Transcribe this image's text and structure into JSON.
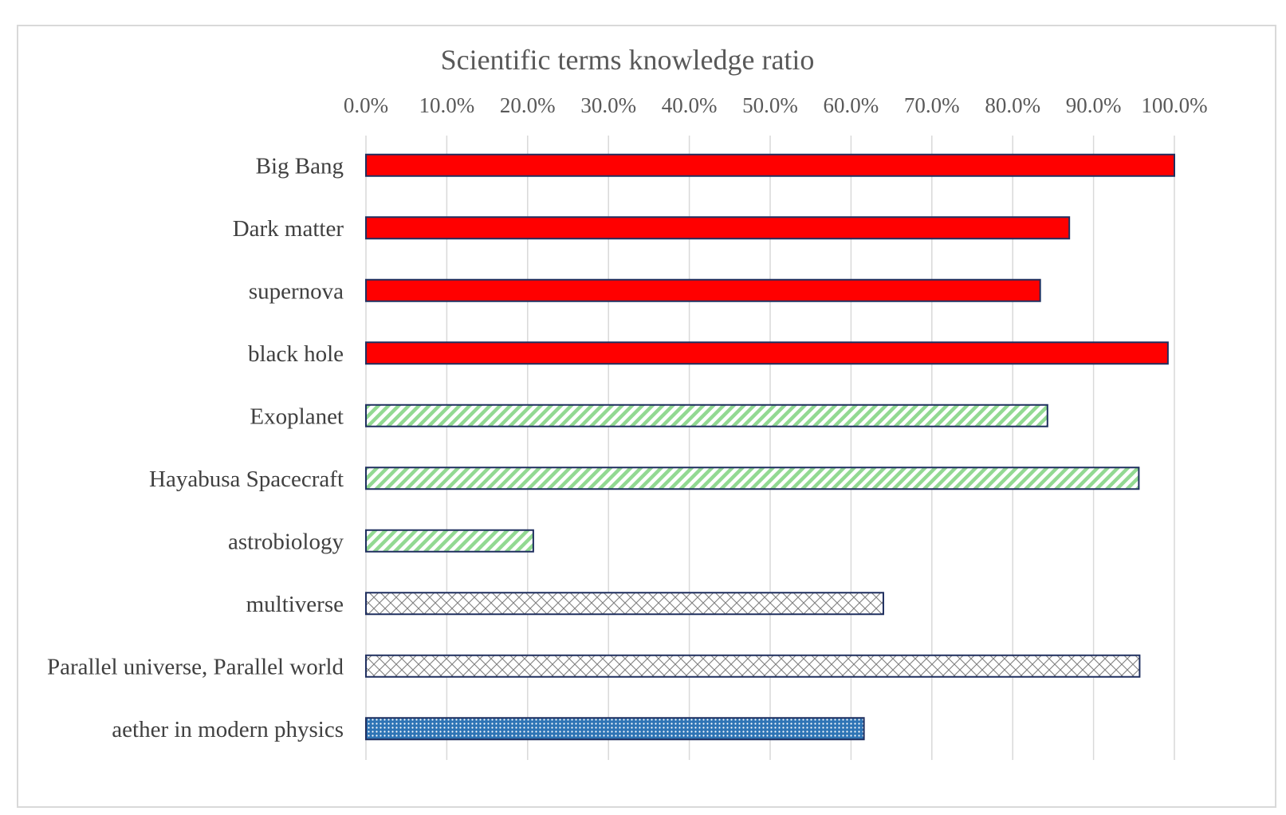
{
  "chart_data": {
    "type": "bar",
    "orientation": "horizontal",
    "title": "Scientific terms knowledge ratio",
    "xlim": [
      0,
      100
    ],
    "x_axis_position": "top",
    "grid": true,
    "legend": "none",
    "x_ticks": [
      "0.0%",
      "10.0%",
      "20.0%",
      "30.0%",
      "40.0%",
      "50.0%",
      "60.0%",
      "70.0%",
      "80.0%",
      "90.0%",
      "100.0%"
    ],
    "bars": [
      {
        "category": "Big Bang",
        "value": 100.0,
        "pattern": "solid-red"
      },
      {
        "category": "Dark matter",
        "value": 87.0,
        "pattern": "solid-red"
      },
      {
        "category": "supernova",
        "value": 83.4,
        "pattern": "solid-red"
      },
      {
        "category": "black hole",
        "value": 99.2,
        "pattern": "solid-red"
      },
      {
        "category": "Exoplanet",
        "value": 84.3,
        "pattern": "green-diagonal"
      },
      {
        "category": "Hayabusa Spacecraft",
        "value": 95.6,
        "pattern": "green-diagonal"
      },
      {
        "category": "astrobiology",
        "value": 20.7,
        "pattern": "green-diagonal"
      },
      {
        "category": "multiverse",
        "value": 64.0,
        "pattern": "crosshatch"
      },
      {
        "category": "Parallel universe, Parallel world",
        "value": 95.7,
        "pattern": "crosshatch"
      },
      {
        "category": "aether in modern physics",
        "value": 61.6,
        "pattern": "blue-dots"
      }
    ],
    "colors": {
      "red": "#ff0000",
      "green": "#92d992",
      "blue": "#2e74b5",
      "outline": "#1f2f5f",
      "gridline": "#d9d9d9"
    }
  }
}
